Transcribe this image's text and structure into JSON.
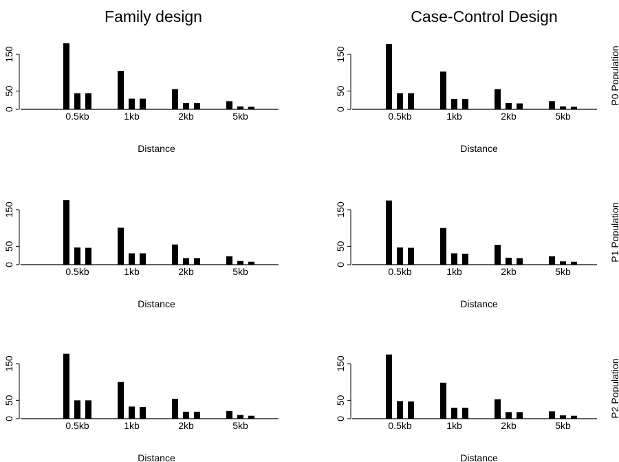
{
  "titles": {
    "left": "Family design",
    "right": "Case-Control Design"
  },
  "row_labels": [
    "P0 Population",
    "P1 Population",
    "P2 Population"
  ],
  "chart_data": [
    {
      "type": "bar",
      "panel": "family-p0",
      "title": "Family design",
      "xlabel": "Distance",
      "ylabel": "",
      "categories": [
        "0.5kb",
        "1kb",
        "2kb",
        "5kb"
      ],
      "yticks": [
        0,
        50,
        150
      ],
      "ylim": [
        0,
        180
      ],
      "series": [
        {
          "values": [
            180,
            105,
            55,
            22
          ]
        },
        {
          "values": [
            44,
            29,
            17,
            8
          ]
        },
        {
          "values": [
            44,
            29,
            17,
            7
          ]
        }
      ]
    },
    {
      "type": "bar",
      "panel": "casecontrol-p0",
      "title": "Case-Control Design",
      "xlabel": "Distance",
      "ylabel": "",
      "categories": [
        "0.5kb",
        "1kb",
        "2kb",
        "5kb"
      ],
      "yticks": [
        0,
        50,
        150
      ],
      "ylim": [
        0,
        180
      ],
      "series": [
        {
          "values": [
            178,
            103,
            55,
            22
          ]
        },
        {
          "values": [
            44,
            28,
            17,
            8
          ]
        },
        {
          "values": [
            44,
            28,
            16,
            7
          ]
        }
      ]
    },
    {
      "type": "bar",
      "panel": "family-p1",
      "title": "",
      "xlabel": "Distance",
      "ylabel": "",
      "categories": [
        "0.5kb",
        "1kb",
        "2kb",
        "5kb"
      ],
      "yticks": [
        0,
        50,
        150
      ],
      "ylim": [
        0,
        180
      ],
      "series": [
        {
          "values": [
            176,
            101,
            55,
            23
          ]
        },
        {
          "values": [
            47,
            31,
            18,
            10
          ]
        },
        {
          "values": [
            46,
            31,
            18,
            8
          ]
        }
      ]
    },
    {
      "type": "bar",
      "panel": "casecontrol-p1",
      "title": "",
      "xlabel": "Distance",
      "ylabel": "",
      "categories": [
        "0.5kb",
        "1kb",
        "2kb",
        "5kb"
      ],
      "yticks": [
        0,
        50,
        150
      ],
      "ylim": [
        0,
        180
      ],
      "series": [
        {
          "values": [
            175,
            100,
            54,
            23
          ]
        },
        {
          "values": [
            47,
            31,
            19,
            9
          ]
        },
        {
          "values": [
            46,
            30,
            18,
            8
          ]
        }
      ]
    },
    {
      "type": "bar",
      "panel": "family-p2",
      "title": "",
      "xlabel": "Distance",
      "ylabel": "",
      "categories": [
        "0.5kb",
        "1kb",
        "2kb",
        "5kb"
      ],
      "yticks": [
        0,
        50,
        150
      ],
      "ylim": [
        0,
        180
      ],
      "series": [
        {
          "values": [
            177,
            100,
            54,
            21
          ]
        },
        {
          "values": [
            50,
            33,
            19,
            10
          ]
        },
        {
          "values": [
            50,
            32,
            19,
            8
          ]
        }
      ]
    },
    {
      "type": "bar",
      "panel": "casecontrol-p2",
      "title": "",
      "xlabel": "Distance",
      "ylabel": "",
      "categories": [
        "0.5kb",
        "1kb",
        "2kb",
        "5kb"
      ],
      "yticks": [
        0,
        50,
        150
      ],
      "ylim": [
        0,
        180
      ],
      "series": [
        {
          "values": [
            175,
            98,
            53,
            20
          ]
        },
        {
          "values": [
            48,
            30,
            18,
            9
          ]
        },
        {
          "values": [
            47,
            30,
            18,
            8
          ]
        }
      ]
    }
  ]
}
